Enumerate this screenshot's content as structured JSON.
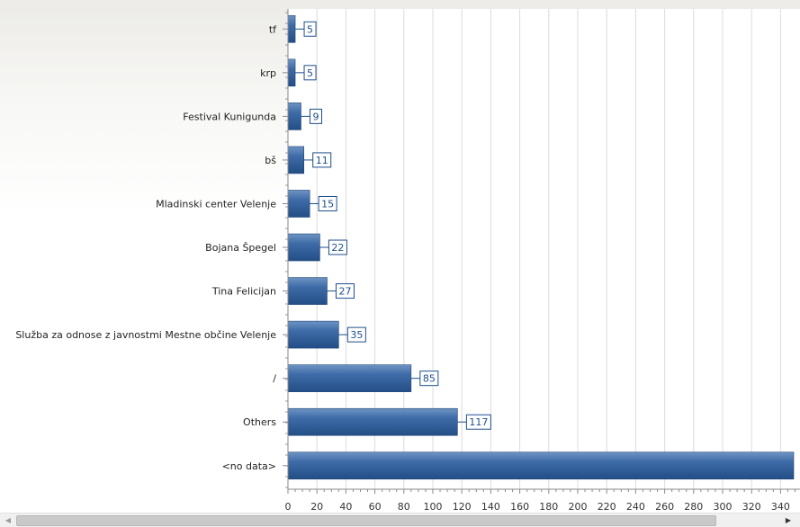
{
  "chart_data": {
    "type": "bar",
    "orientation": "horizontal",
    "categories": [
      "tf",
      "krp",
      "Festival Kunigunda",
      "bš",
      "Mladinski center Velenje",
      "Bojana Špegel",
      "Tina Felicijan",
      "Služba za odnose z javnostmi Mestne občine Velenje",
      "/",
      "Others",
      "<no data>"
    ],
    "values": [
      5,
      5,
      9,
      11,
      15,
      22,
      27,
      35,
      85,
      117,
      350
    ],
    "data_labels": [
      "5",
      "5",
      "9",
      "11",
      "15",
      "22",
      "27",
      "35",
      "85",
      "117",
      ""
    ],
    "x_ticks": [
      "0",
      "20",
      "40",
      "60",
      "80",
      "100",
      "120",
      "140",
      "160",
      "180",
      "200",
      "220",
      "240",
      "260",
      "280",
      "300",
      "320",
      "340"
    ],
    "xlim": [
      0,
      350
    ],
    "grid": true,
    "bar_color": "#2f5f9c",
    "label_color": "#1f4e8c"
  },
  "scrollbar": {
    "left_arrow": "◀",
    "right_arrow": "▶"
  }
}
